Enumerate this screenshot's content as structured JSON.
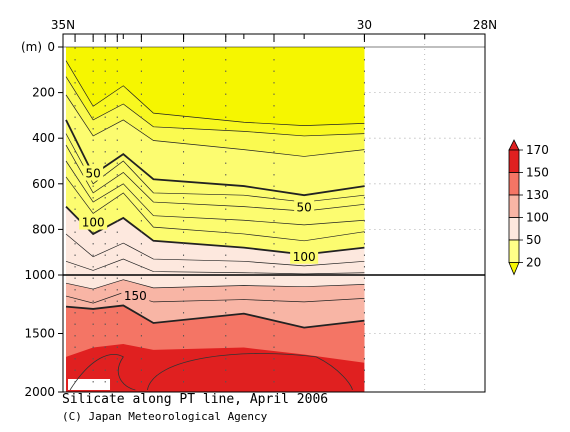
{
  "chart_data": {
    "type": "contour",
    "title": "Silicate along PT line, April 2006",
    "credit": "(C) Japan Meteorological Agency",
    "y_unit_label": "(m)",
    "xlim": [
      35,
      28
    ],
    "x_ticks": [
      {
        "value": 35,
        "label": "35N"
      },
      {
        "value": 30,
        "label": "30"
      },
      {
        "value": 28,
        "label": "28N"
      }
    ],
    "y_upper": {
      "range": [
        0,
        1000
      ],
      "ticks": [
        0,
        200,
        400,
        600,
        800,
        1000
      ]
    },
    "y_lower": {
      "range": [
        1000,
        2000
      ],
      "ticks": [
        1500,
        2000
      ]
    },
    "station_latitudes": [
      34.8,
      34.5,
      34.3,
      34.1,
      33.7,
      33.0,
      32.3,
      31.5,
      30.0
    ],
    "colorbar": {
      "levels": [
        20,
        50,
        100,
        130,
        150,
        170
      ],
      "colors": [
        "#f6f600",
        "#ffff88",
        "#fde8de",
        "#f8b5a5",
        "#f47565",
        "#e02020"
      ]
    },
    "labelled_contours": [
      {
        "value": 50,
        "label": "50",
        "lat": 34.5,
        "depth": 555
      },
      {
        "value": 50,
        "label": "50",
        "lat": 31.0,
        "depth": 705
      },
      {
        "value": 100,
        "label": "100",
        "lat": 34.5,
        "depth": 770
      },
      {
        "value": 100,
        "label": "100",
        "lat": 31.0,
        "depth": 920
      },
      {
        "value": 150,
        "label": "150",
        "lat": 33.8,
        "depth": 1180
      }
    ],
    "contours": [
      {
        "value": 20,
        "bold": false,
        "points": [
          [
            34.95,
            60
          ],
          [
            34.5,
            260
          ],
          [
            34.0,
            170
          ],
          [
            33.5,
            290
          ],
          [
            32.0,
            330
          ],
          [
            31.0,
            345
          ],
          [
            30.0,
            335
          ]
        ]
      },
      {
        "value": 30,
        "bold": false,
        "points": [
          [
            34.95,
            130
          ],
          [
            34.5,
            320
          ],
          [
            34.0,
            250
          ],
          [
            33.5,
            350
          ],
          [
            32.0,
            370
          ],
          [
            31.0,
            390
          ],
          [
            30.0,
            380
          ]
        ]
      },
      {
        "value": 40,
        "bold": false,
        "points": [
          [
            34.95,
            210
          ],
          [
            34.5,
            390
          ],
          [
            34.0,
            320
          ],
          [
            33.5,
            410
          ],
          [
            32.0,
            450
          ],
          [
            31.0,
            480
          ],
          [
            30.0,
            450
          ]
        ]
      },
      {
        "value": 50,
        "bold": true,
        "points": [
          [
            34.95,
            320
          ],
          [
            34.5,
            560
          ],
          [
            34.0,
            470
          ],
          [
            33.5,
            580
          ],
          [
            32.0,
            610
          ],
          [
            31.0,
            650
          ],
          [
            30.0,
            610
          ]
        ]
      },
      {
        "value": 60,
        "bold": false,
        "points": [
          [
            34.95,
            380
          ],
          [
            34.5,
            600
          ],
          [
            34.0,
            500
          ],
          [
            33.5,
            640
          ],
          [
            32.0,
            650
          ],
          [
            31.0,
            680
          ],
          [
            30.0,
            650
          ]
        ]
      },
      {
        "value": 70,
        "bold": false,
        "points": [
          [
            34.95,
            430
          ],
          [
            34.5,
            640
          ],
          [
            34.0,
            550
          ],
          [
            33.5,
            680
          ],
          [
            32.0,
            700
          ],
          [
            31.0,
            720
          ],
          [
            30.0,
            690
          ]
        ]
      },
      {
        "value": 80,
        "bold": false,
        "points": [
          [
            34.95,
            500
          ],
          [
            34.5,
            680
          ],
          [
            34.0,
            600
          ],
          [
            33.5,
            740
          ],
          [
            32.0,
            760
          ],
          [
            31.0,
            780
          ],
          [
            30.0,
            760
          ]
        ]
      },
      {
        "value": 90,
        "bold": false,
        "points": [
          [
            34.95,
            570
          ],
          [
            34.5,
            730
          ],
          [
            34.0,
            640
          ],
          [
            33.5,
            790
          ],
          [
            32.0,
            820
          ],
          [
            31.0,
            850
          ],
          [
            30.0,
            810
          ]
        ]
      },
      {
        "value": 100,
        "bold": true,
        "points": [
          [
            34.95,
            700
          ],
          [
            34.5,
            820
          ],
          [
            34.0,
            750
          ],
          [
            33.5,
            850
          ],
          [
            32.0,
            880
          ],
          [
            31.0,
            910
          ],
          [
            30.0,
            880
          ]
        ]
      },
      {
        "value": 110,
        "bold": false,
        "points": [
          [
            34.95,
            820
          ],
          [
            34.5,
            920
          ],
          [
            34.0,
            860
          ],
          [
            33.5,
            930
          ],
          [
            32.0,
            940
          ],
          [
            31.0,
            960
          ],
          [
            30.0,
            940
          ]
        ]
      },
      {
        "value": 120,
        "bold": false,
        "points": [
          [
            34.95,
            940
          ],
          [
            34.5,
            980
          ],
          [
            34.0,
            930
          ],
          [
            33.5,
            985
          ],
          [
            32.0,
            990
          ],
          [
            31.0,
            995
          ],
          [
            30.0,
            990
          ]
        ]
      },
      {
        "value": 130,
        "bold": false,
        "points": [
          [
            34.95,
            1070
          ],
          [
            34.5,
            1120
          ],
          [
            34.0,
            1040
          ],
          [
            33.5,
            1110
          ],
          [
            32.0,
            1090
          ],
          [
            31.0,
            1100
          ],
          [
            30.0,
            1080
          ]
        ]
      },
      {
        "value": 140,
        "bold": false,
        "points": [
          [
            34.95,
            1180
          ],
          [
            34.5,
            1240
          ],
          [
            34.0,
            1150
          ],
          [
            33.5,
            1230
          ],
          [
            32.0,
            1210
          ],
          [
            31.0,
            1230
          ],
          [
            30.0,
            1200
          ]
        ]
      },
      {
        "value": 150,
        "bold": true,
        "points": [
          [
            34.95,
            1270
          ],
          [
            34.5,
            1290
          ],
          [
            34.0,
            1260
          ],
          [
            33.5,
            1410
          ],
          [
            32.0,
            1330
          ],
          [
            31.0,
            1450
          ],
          [
            30.0,
            1390
          ]
        ]
      },
      {
        "value": 160,
        "bold": false,
        "points": [
          [
            34.95,
            1700
          ],
          [
            34.5,
            1620
          ],
          [
            34.0,
            1590
          ],
          [
            33.5,
            1640
          ],
          [
            32.0,
            1620
          ],
          [
            31.0,
            1680
          ],
          [
            30.0,
            1750
          ]
        ]
      }
    ]
  }
}
